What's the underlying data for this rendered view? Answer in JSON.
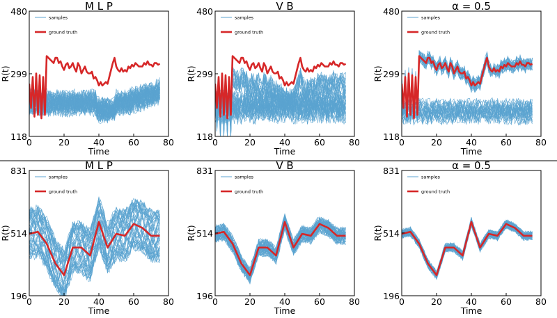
{
  "figure": {
    "colors": {
      "samples": "#5ba3d0",
      "ground_truth": "#d62728",
      "divider": "#000000"
    }
  },
  "chart_data": [
    {
      "type": "line",
      "title": "M L P",
      "xlabel": "Time",
      "ylabel": "R(t)",
      "xlim": [
        0,
        80
      ],
      "ylim": [
        118,
        480
      ],
      "xticks": [
        "0",
        "20",
        "40",
        "60",
        "80"
      ],
      "yticks": [
        "118",
        "299",
        "480"
      ],
      "legend": {
        "position": "top-left",
        "entries": [
          "samples",
          "ground truth"
        ]
      },
      "series": [
        {
          "name": "ground truth",
          "x": [
            0,
            1,
            2,
            3,
            4,
            5,
            6,
            7,
            8,
            9,
            10,
            11,
            12,
            13,
            14,
            15,
            16,
            17,
            18,
            19,
            20,
            21,
            22,
            23,
            24,
            25,
            26,
            27,
            28,
            29,
            30,
            31,
            32,
            33,
            34,
            35,
            36,
            37,
            38,
            39,
            40,
            41,
            42,
            43,
            44,
            45,
            46,
            47,
            48,
            49,
            50,
            51,
            52,
            53,
            54,
            55,
            56,
            57,
            58,
            59,
            60,
            61,
            62,
            63,
            64,
            65,
            66,
            67,
            68,
            69,
            70,
            71,
            72,
            73,
            74,
            75
          ],
          "values": [
            270,
            200,
            290,
            175,
            300,
            180,
            295,
            170,
            290,
            180,
            350,
            345,
            340,
            335,
            330,
            345,
            345,
            330,
            335,
            320,
            310,
            325,
            330,
            315,
            320,
            330,
            315,
            305,
            330,
            320,
            300,
            310,
            320,
            305,
            300,
            300,
            305,
            285,
            290,
            280,
            265,
            275,
            265,
            270,
            275,
            270,
            290,
            310,
            330,
            345,
            320,
            310,
            305,
            315,
            305,
            310,
            305,
            320,
            315,
            325,
            320,
            330,
            325,
            320,
            320,
            320,
            330,
            325,
            335,
            325,
            325,
            320,
            330,
            330,
            325,
            328
          ]
        },
        {
          "name": "samples",
          "count": 50,
          "band": "around 200, spread ±35, values rising after t=60"
        }
      ]
    },
    {
      "type": "line",
      "title": "V B",
      "xlabel": "Time",
      "ylabel": "R(t)",
      "xlim": [
        0,
        80
      ],
      "ylim": [
        118,
        480
      ],
      "xticks": [
        "0",
        "20",
        "40",
        "60",
        "80"
      ],
      "yticks": [
        "118",
        "299",
        "480"
      ],
      "legend": {
        "position": "top-left",
        "entries": [
          "samples",
          "ground truth"
        ]
      },
      "series": [
        {
          "name": "ground truth",
          "x": [
            0,
            1,
            2,
            3,
            4,
            5,
            6,
            7,
            8,
            9,
            10,
            11,
            12,
            13,
            14,
            15,
            16,
            17,
            18,
            19,
            20,
            21,
            22,
            23,
            24,
            25,
            26,
            27,
            28,
            29,
            30,
            31,
            32,
            33,
            34,
            35,
            36,
            37,
            38,
            39,
            40,
            41,
            42,
            43,
            44,
            45,
            46,
            47,
            48,
            49,
            50,
            51,
            52,
            53,
            54,
            55,
            56,
            57,
            58,
            59,
            60,
            61,
            62,
            63,
            64,
            65,
            66,
            67,
            68,
            69,
            70,
            71,
            72,
            73,
            74,
            75
          ],
          "values": [
            270,
            200,
            290,
            175,
            300,
            180,
            295,
            170,
            290,
            180,
            350,
            345,
            340,
            335,
            330,
            345,
            345,
            330,
            335,
            320,
            310,
            325,
            330,
            315,
            320,
            330,
            315,
            305,
            330,
            320,
            300,
            310,
            320,
            305,
            300,
            300,
            305,
            285,
            290,
            280,
            265,
            275,
            265,
            270,
            275,
            270,
            290,
            310,
            330,
            345,
            320,
            310,
            305,
            315,
            305,
            310,
            305,
            320,
            315,
            325,
            320,
            330,
            325,
            320,
            320,
            320,
            330,
            325,
            335,
            325,
            325,
            320,
            330,
            330,
            325,
            328
          ]
        },
        {
          "name": "samples",
          "count": 50,
          "band": "wide spread 140–300"
        }
      ]
    },
    {
      "type": "line",
      "title": "α = 0.5",
      "xlabel": "Time",
      "ylabel": "R(t)",
      "xlim": [
        0,
        80
      ],
      "ylim": [
        118,
        480
      ],
      "xticks": [
        "0",
        "20",
        "40",
        "60",
        "80"
      ],
      "yticks": [
        "118",
        "299",
        "480"
      ],
      "legend": {
        "position": "top-left",
        "entries": [
          "samples",
          "ground truth"
        ]
      },
      "series": [
        {
          "name": "ground truth",
          "x": [
            0,
            1,
            2,
            3,
            4,
            5,
            6,
            7,
            8,
            9,
            10,
            11,
            12,
            13,
            14,
            15,
            16,
            17,
            18,
            19,
            20,
            21,
            22,
            23,
            24,
            25,
            26,
            27,
            28,
            29,
            30,
            31,
            32,
            33,
            34,
            35,
            36,
            37,
            38,
            39,
            40,
            41,
            42,
            43,
            44,
            45,
            46,
            47,
            48,
            49,
            50,
            51,
            52,
            53,
            54,
            55,
            56,
            57,
            58,
            59,
            60,
            61,
            62,
            63,
            64,
            65,
            66,
            67,
            68,
            69,
            70,
            71,
            72,
            73,
            74,
            75
          ],
          "values": [
            270,
            200,
            290,
            175,
            300,
            180,
            295,
            170,
            290,
            180,
            350,
            345,
            340,
            335,
            330,
            345,
            345,
            330,
            335,
            320,
            310,
            325,
            330,
            315,
            320,
            330,
            315,
            305,
            330,
            320,
            300,
            310,
            320,
            305,
            300,
            300,
            305,
            285,
            290,
            280,
            265,
            275,
            265,
            270,
            275,
            270,
            290,
            310,
            330,
            345,
            320,
            310,
            305,
            315,
            305,
            310,
            305,
            320,
            315,
            325,
            320,
            330,
            325,
            320,
            320,
            320,
            330,
            325,
            335,
            325,
            325,
            320,
            330,
            330,
            325,
            328
          ]
        },
        {
          "name": "samples",
          "count": 50,
          "band": "bimodal: tracking truth and a lower band around 190"
        }
      ]
    },
    {
      "type": "line",
      "title": "M L P",
      "xlabel": "Time",
      "ylabel": "R(t)",
      "xlim": [
        0,
        80
      ],
      "ylim": [
        196,
        831
      ],
      "xticks": [
        "0",
        "20",
        "40",
        "60",
        "80"
      ],
      "yticks": [
        "196",
        "514",
        "831"
      ],
      "legend": {
        "position": "top-left",
        "entries": [
          "samples",
          "ground truth"
        ]
      },
      "series": [
        {
          "name": "ground truth",
          "x": [
            0,
            5,
            10,
            15,
            20,
            25,
            30,
            35,
            40,
            45,
            50,
            55,
            60,
            65,
            70,
            75
          ],
          "values": [
            510,
            520,
            460,
            360,
            300,
            440,
            440,
            400,
            570,
            440,
            510,
            500,
            560,
            540,
            500,
            500
          ]
        },
        {
          "name": "samples",
          "count": 50,
          "band": "very wide spread ±200"
        }
      ]
    },
    {
      "type": "line",
      "title": "V B",
      "xlabel": "Time",
      "ylabel": "R(t)",
      "xlim": [
        0,
        80
      ],
      "ylim": [
        196,
        831
      ],
      "xticks": [
        "0",
        "20",
        "40",
        "60",
        "80"
      ],
      "yticks": [
        "196",
        "514",
        "831"
      ],
      "legend": {
        "position": "top-left",
        "entries": [
          "samples",
          "ground truth"
        ]
      },
      "series": [
        {
          "name": "ground truth",
          "x": [
            0,
            5,
            10,
            15,
            20,
            25,
            30,
            35,
            40,
            45,
            50,
            55,
            60,
            65,
            70,
            75
          ],
          "values": [
            510,
            520,
            460,
            360,
            300,
            440,
            440,
            400,
            570,
            440,
            510,
            500,
            560,
            540,
            500,
            500
          ]
        },
        {
          "name": "samples",
          "count": 50,
          "band": "moderate spread ±50"
        }
      ]
    },
    {
      "type": "line",
      "title": "α = 0.5",
      "xlabel": "Time",
      "ylabel": "R(t)",
      "xlim": [
        0,
        80
      ],
      "ylim": [
        196,
        831
      ],
      "xticks": [
        "0",
        "20",
        "40",
        "60",
        "80"
      ],
      "yticks": [
        "196",
        "514",
        "831"
      ],
      "legend": {
        "position": "top-left",
        "entries": [
          "samples",
          "ground truth"
        ]
      },
      "series": [
        {
          "name": "ground truth",
          "x": [
            0,
            5,
            10,
            15,
            20,
            25,
            30,
            35,
            40,
            45,
            50,
            55,
            60,
            65,
            70,
            75
          ],
          "values": [
            510,
            520,
            460,
            360,
            300,
            440,
            440,
            400,
            570,
            440,
            510,
            500,
            560,
            540,
            500,
            500
          ]
        },
        {
          "name": "samples",
          "count": 50,
          "band": "tight spread ±25"
        }
      ]
    }
  ]
}
